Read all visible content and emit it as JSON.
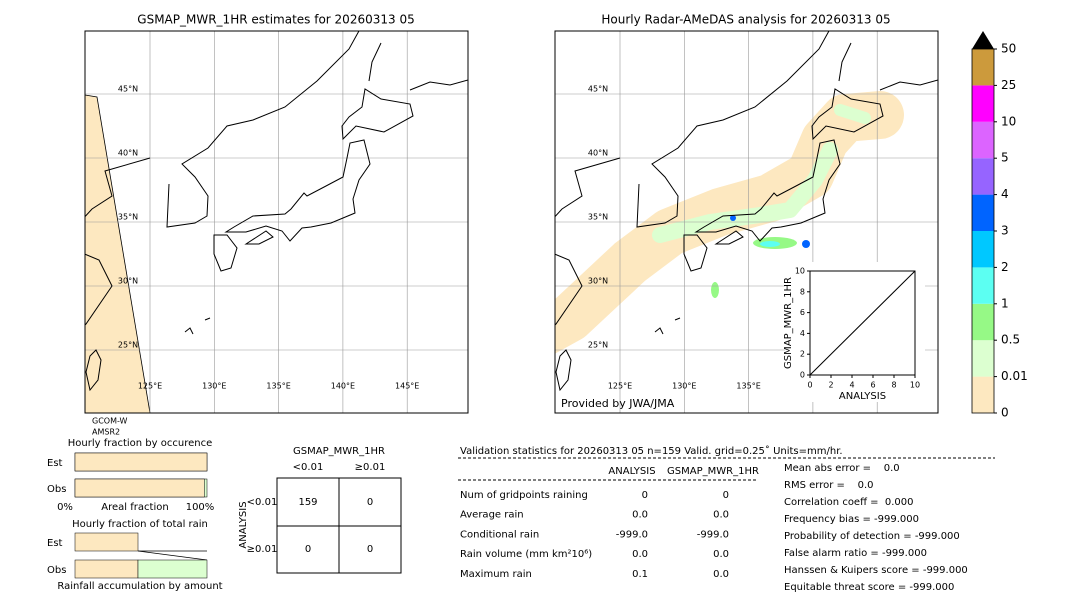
{
  "left_map": {
    "title": "GSMAP_MWR_1HR estimates for 20260313 05",
    "sensor": [
      "GCOM-W",
      "AMSR2"
    ]
  },
  "right_map": {
    "title": "Hourly Radar-AMeDAS analysis for 20260313 05",
    "credit": "Provided by JWA/JMA"
  },
  "map_grid": {
    "lat_ticks": [
      {
        "value": 45,
        "label": "45°N"
      },
      {
        "value": 40,
        "label": "40°N"
      },
      {
        "value": 35,
        "label": "35°N"
      },
      {
        "value": 30,
        "label": "30°N"
      },
      {
        "value": 25,
        "label": "25°N"
      }
    ],
    "lon_ticks": [
      {
        "value": 125,
        "label": "125°E"
      },
      {
        "value": 130,
        "label": "130°E"
      },
      {
        "value": 135,
        "label": "135°E"
      },
      {
        "value": 140,
        "label": "140°E"
      },
      {
        "value": 145,
        "label": "145°E"
      }
    ]
  },
  "scatter_inset": {
    "type": "scatter",
    "xlabel": "ANALYSIS",
    "ylabel": "GSMAP_MWR_1HR",
    "xlim": [
      0,
      10
    ],
    "ylim": [
      0,
      10
    ],
    "xticks": [
      0,
      2,
      4,
      6,
      8,
      10
    ],
    "yticks": [
      0,
      2,
      4,
      6,
      8,
      10
    ]
  },
  "colorbar": {
    "levels": [
      0,
      0.01,
      0.5,
      1,
      2,
      3,
      4,
      5,
      10,
      25,
      50
    ],
    "colors": [
      "#fde8c0",
      "#dcffd0",
      "#96f986",
      "#5cfff2",
      "#00c8ff",
      "#0064ff",
      "#9664ff",
      "#dc64ff",
      "#ff00ff",
      "#cc9a3c"
    ],
    "extend_color": "#000000"
  },
  "occurrence": {
    "title": "Hourly fraction by occurence",
    "rows": [
      "Est",
      "Obs"
    ],
    "no_rain_percent": [
      100,
      98
    ],
    "xlabels": [
      "0%",
      "Areal fraction",
      "100%"
    ]
  },
  "amount": {
    "title": "Hourly fraction of total rain",
    "rows": [
      "Est",
      "Obs"
    ],
    "xlabel": "Rainfall accumulation by amount"
  },
  "contingency": {
    "title": "GSMAP_MWR_1HR",
    "columns": [
      "<0.01",
      "≥0.01"
    ],
    "ylabel": "ANALYSIS",
    "rows": [
      "<0.01",
      "≥0.01"
    ],
    "cells": [
      [
        159,
        0
      ],
      [
        0,
        0
      ]
    ]
  },
  "validation": {
    "header": "Validation statistics for 20260313 05  n=159 Valid. grid=0.25˚ Units=mm/hr.",
    "columns": [
      "ANALYSIS",
      "GSMAP_MWR_1HR"
    ],
    "rows": [
      [
        "Num of gridpoints raining",
        "0",
        "0"
      ],
      [
        "Average rain",
        "0.0",
        "0.0"
      ],
      [
        "Conditional rain",
        "-999.0",
        "-999.0"
      ],
      [
        "Rain volume (mm km²10⁶)",
        "0.0",
        "0.0"
      ],
      [
        "Maximum rain",
        "0.1",
        "0.0"
      ]
    ],
    "scores": [
      "Mean abs error =    0.0",
      "RMS error =    0.0",
      "Correlation coeff =  0.000",
      "Frequency bias = -999.000",
      "Probability of detection = -999.000",
      "False alarm ratio = -999.000",
      "Hanssen & Kuipers score = -999.000",
      "Equitable threat score = -999.000"
    ]
  }
}
